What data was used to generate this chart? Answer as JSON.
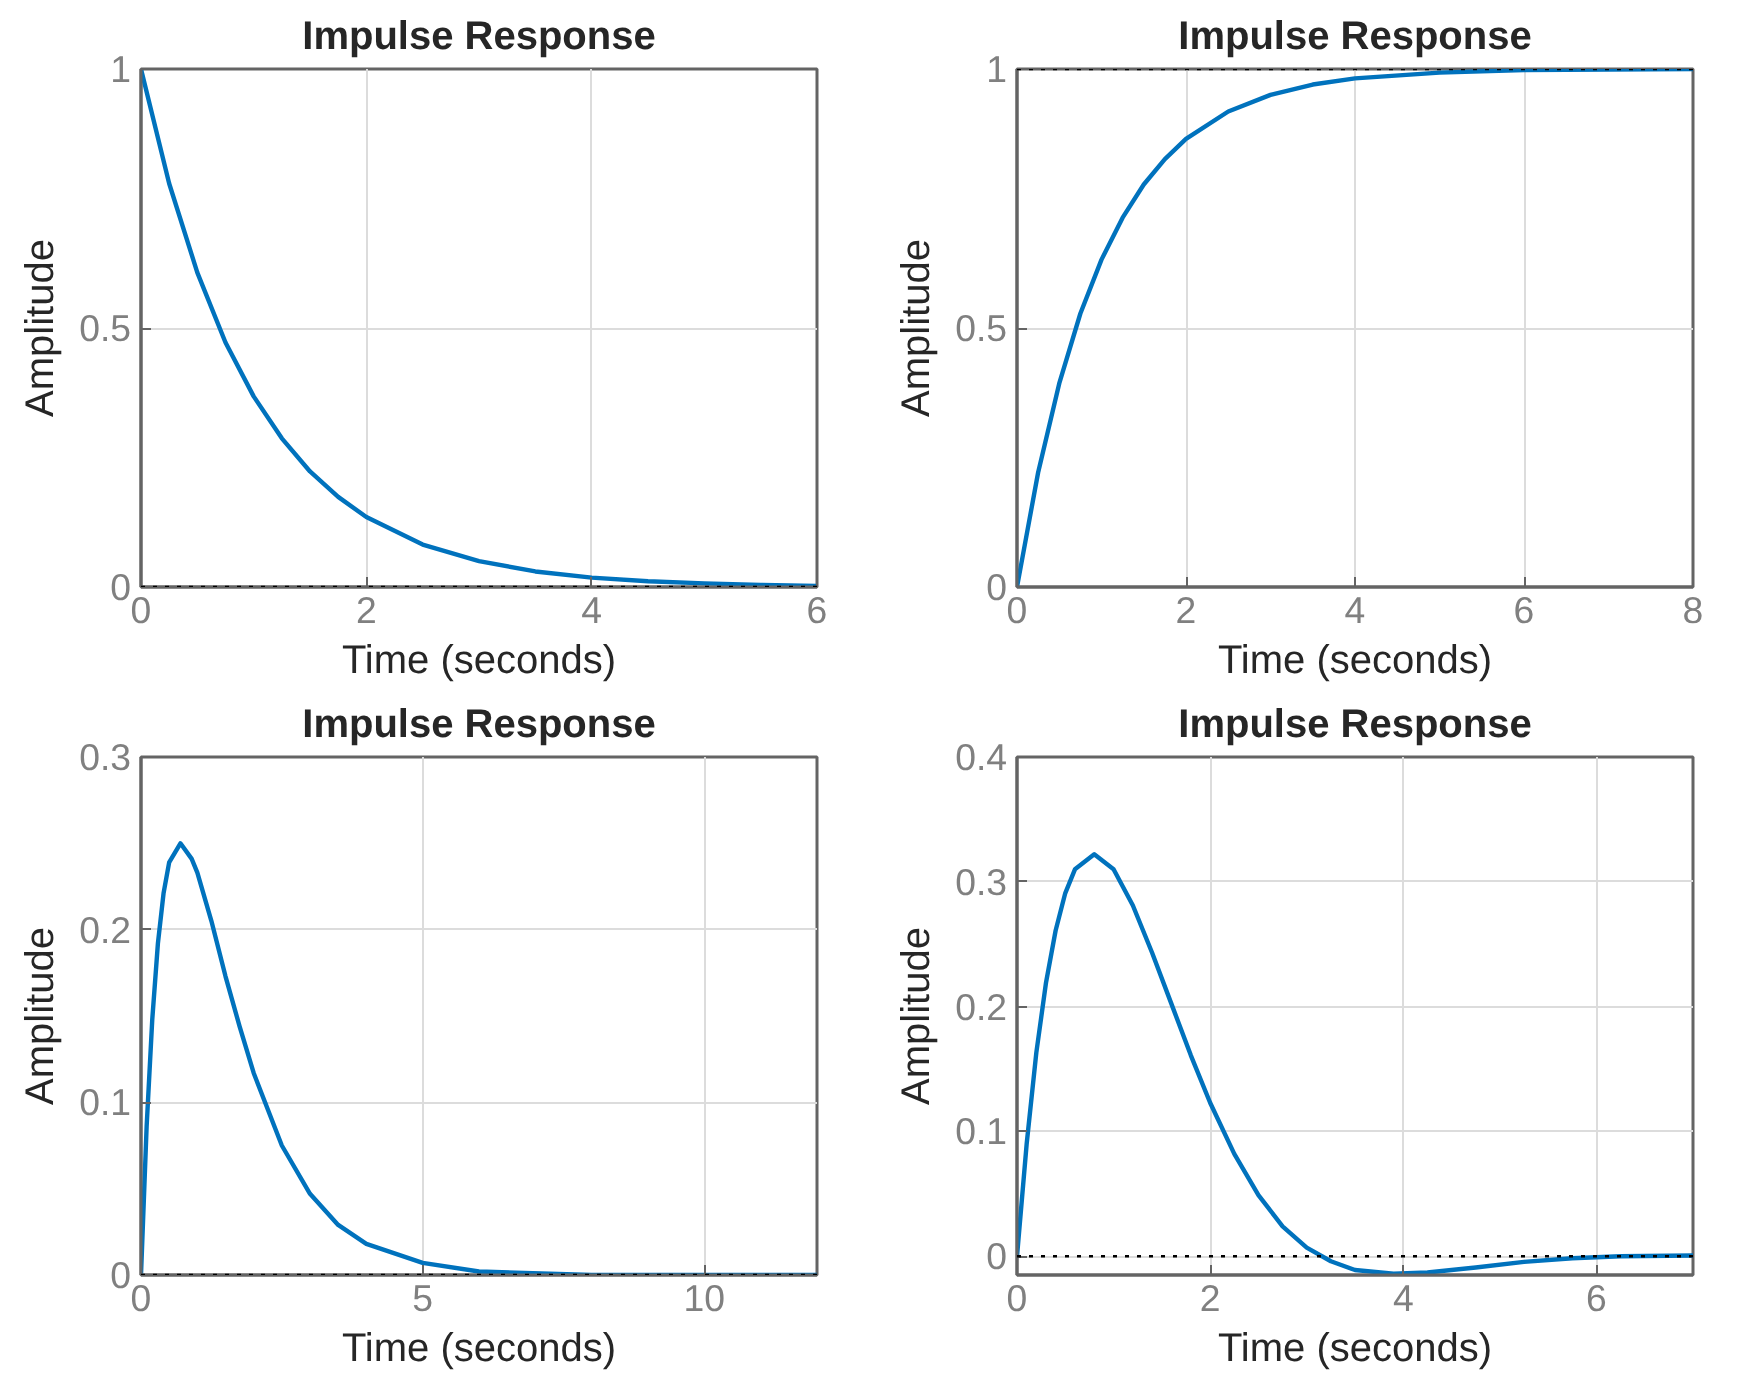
{
  "chart_data": [
    {
      "type": "line",
      "title": "Impulse Response",
      "xlabel": "Time (seconds)",
      "ylabel": "Amplitude",
      "color": "#0072bd",
      "line_style": "solid",
      "grid": true,
      "xlim": [
        0,
        6
      ],
      "ylim": [
        0,
        1
      ],
      "xticks": [
        0,
        2,
        4,
        6
      ],
      "yticks": [
        0,
        0.5,
        1
      ],
      "x": [
        0,
        0.25,
        0.5,
        0.75,
        1,
        1.25,
        1.5,
        1.75,
        2,
        2.5,
        3,
        3.5,
        4,
        4.5,
        5,
        5.5,
        6
      ],
      "values": [
        1,
        0.779,
        0.607,
        0.472,
        0.368,
        0.287,
        0.223,
        0.174,
        0.135,
        0.082,
        0.05,
        0.03,
        0.018,
        0.011,
        0.007,
        0.004,
        0.002
      ],
      "ref_lines": [
        {
          "axis": "y",
          "value": 0,
          "color": "#000000",
          "line_style": "dotted"
        }
      ]
    },
    {
      "type": "line",
      "title": "Impulse Response",
      "xlabel": "Time (seconds)",
      "ylabel": "Amplitude",
      "color": "#0072bd",
      "line_style": "solid",
      "grid": true,
      "xlim": [
        0,
        8
      ],
      "ylim": [
        0,
        1
      ],
      "xticks": [
        0,
        2,
        4,
        6,
        8
      ],
      "yticks": [
        0,
        0.5,
        1
      ],
      "x": [
        0,
        0.25,
        0.5,
        0.75,
        1,
        1.25,
        1.5,
        1.75,
        2,
        2.5,
        3,
        3.5,
        4,
        5,
        6,
        7,
        8
      ],
      "values": [
        0,
        0.221,
        0.393,
        0.528,
        0.632,
        0.713,
        0.777,
        0.826,
        0.865,
        0.918,
        0.95,
        0.97,
        0.982,
        0.993,
        0.998,
        0.999,
        1
      ],
      "ref_lines": [
        {
          "axis": "y",
          "value": 1,
          "color": "#000000",
          "line_style": "dotted"
        }
      ]
    },
    {
      "type": "line",
      "title": "Impulse Response",
      "xlabel": "Time (seconds)",
      "ylabel": "Amplitude",
      "color": "#0072bd",
      "line_style": "solid",
      "grid": true,
      "xlim": [
        0,
        12
      ],
      "ylim": [
        0,
        0.3
      ],
      "xticks": [
        0,
        5,
        10
      ],
      "yticks": [
        0,
        0.1,
        0.2,
        0.3
      ],
      "x": [
        0,
        0.1,
        0.2,
        0.3,
        0.4,
        0.5,
        0.7,
        0.9,
        1,
        1.25,
        1.5,
        1.75,
        2,
        2.5,
        3,
        3.5,
        4,
        5,
        6,
        8,
        10,
        12
      ],
      "values": [
        0,
        0.086,
        0.148,
        0.192,
        0.221,
        0.239,
        0.25,
        0.241,
        0.233,
        0.205,
        0.173,
        0.144,
        0.117,
        0.075,
        0.047,
        0.029,
        0.018,
        0.007,
        0.002,
        0,
        0,
        0
      ],
      "ref_lines": [
        {
          "axis": "y",
          "value": 0,
          "color": "#000000",
          "line_style": "dotted"
        }
      ]
    },
    {
      "type": "line",
      "title": "Impulse Response",
      "xlabel": "Time (seconds)",
      "ylabel": "Amplitude",
      "color": "#0072bd",
      "line_style": "solid",
      "grid": true,
      "xlim": [
        0,
        7
      ],
      "ylim": [
        -0.015,
        0.4
      ],
      "xticks": [
        0,
        2,
        4,
        6
      ],
      "yticks": [
        0,
        0.1,
        0.2,
        0.3,
        0.4
      ],
      "x": [
        0,
        0.1,
        0.2,
        0.3,
        0.4,
        0.5,
        0.6,
        0.8,
        1,
        1.2,
        1.4,
        1.6,
        1.8,
        2,
        2.25,
        2.5,
        2.75,
        3,
        3.25,
        3.5,
        3.9,
        4.25,
        4.75,
        5.25,
        5.75,
        6.25,
        7
      ],
      "values": [
        0,
        0.09,
        0.163,
        0.219,
        0.261,
        0.291,
        0.31,
        0.322,
        0.31,
        0.281,
        0.243,
        0.202,
        0.161,
        0.123,
        0.082,
        0.049,
        0.024,
        0.007,
        -0.004,
        -0.011,
        -0.014,
        -0.013,
        -0.009,
        -0.0045,
        -0.0016,
        0,
        0.0006
      ],
      "ref_lines": [
        {
          "axis": "y",
          "value": 0,
          "color": "#000000",
          "line_style": "dotted"
        }
      ]
    }
  ]
}
